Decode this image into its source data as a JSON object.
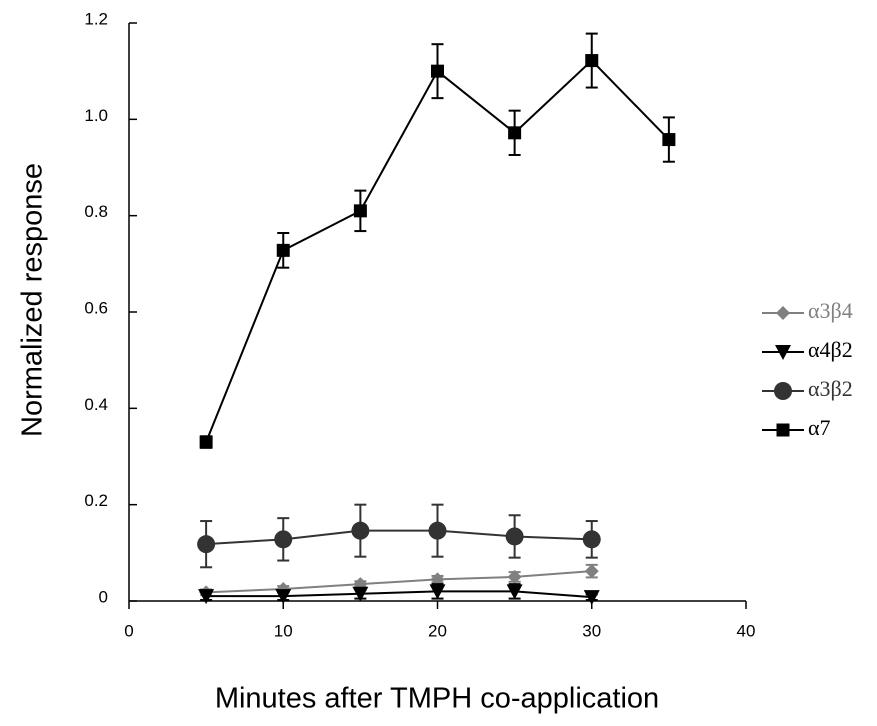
{
  "chart_data": {
    "type": "line",
    "xlabel": "Minutes after TMPH co-application",
    "ylabel": "Normalized response",
    "xlim": [
      0,
      40
    ],
    "xticks": [
      0,
      10,
      20,
      30,
      40
    ],
    "ylim": [
      0,
      1.2
    ],
    "yticks": [
      0,
      0.2,
      0.4,
      0.6,
      0.8,
      {
        "value": 1,
        "label": "1.0"
      },
      1.2
    ],
    "legend": "right",
    "series": [
      {
        "name": "α3β4",
        "color": "#808080",
        "marker": "diamond",
        "x": [
          5,
          10,
          15,
          20,
          25,
          30
        ],
        "values": [
          0.018,
          0.025,
          0.035,
          0.045,
          0.05,
          0.062
        ],
        "errors": [
          0.006,
          0.006,
          0.006,
          0.007,
          0.01,
          0.013
        ]
      },
      {
        "name": "α4β2",
        "color": "#000000",
        "marker": "triangle-down",
        "x": [
          5,
          10,
          15,
          20,
          25,
          30
        ],
        "values": [
          0.01,
          0.01,
          0.015,
          0.02,
          0.02,
          0.008
        ],
        "errors": [
          0.008,
          0.008,
          0.01,
          0.015,
          0.015,
          0.006
        ]
      },
      {
        "name": "α3β2",
        "color": "#333333",
        "marker": "circle",
        "x": [
          5,
          10,
          15,
          20,
          25,
          30
        ],
        "values": [
          0.118,
          0.128,
          0.146,
          0.146,
          0.134,
          0.128
        ],
        "errors": [
          0.048,
          0.044,
          0.054,
          0.054,
          0.044,
          0.038
        ]
      },
      {
        "name": "α7",
        "color": "#000000",
        "marker": "square",
        "x": [
          5,
          10,
          15,
          20,
          25,
          30,
          35
        ],
        "values": [
          0.33,
          0.728,
          0.81,
          1.1,
          0.972,
          1.122,
          0.958
        ],
        "errors": [
          0.012,
          0.036,
          0.042,
          0.056,
          0.046,
          0.056,
          0.046
        ]
      }
    ]
  }
}
